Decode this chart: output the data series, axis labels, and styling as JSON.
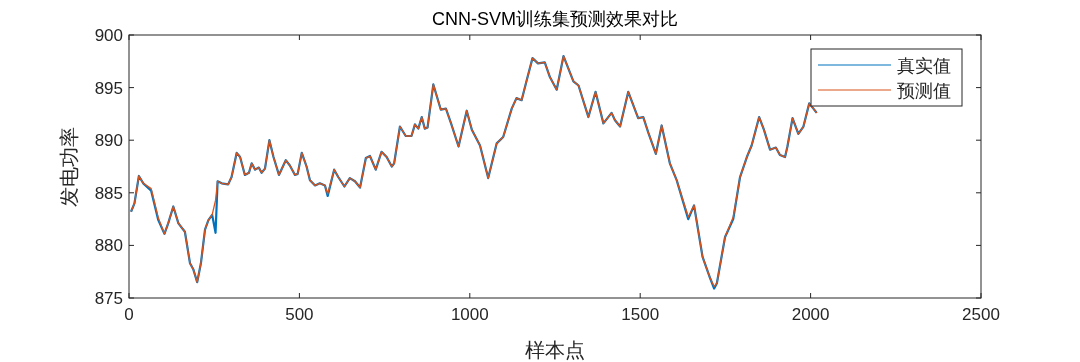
{
  "chart_data": {
    "type": "line",
    "title": "CNN-SVM训练集预测效果对比",
    "xlabel": "样本点",
    "ylabel": "发电功率",
    "xlim": [
      0,
      2500
    ],
    "xticks": [
      0,
      500,
      1000,
      1500,
      2000,
      2500
    ],
    "ylim": [
      875,
      900
    ],
    "yticks": [
      875,
      880,
      885,
      890,
      895,
      900
    ],
    "grid": false,
    "legend": "top right",
    "marker": "none",
    "line_style": "solid",
    "x": [
      6,
      16,
      29,
      42,
      65,
      86,
      104,
      115,
      130,
      145,
      164,
      179,
      189,
      200,
      211,
      223,
      233,
      244,
      254,
      260,
      272,
      291,
      301,
      316,
      326,
      340,
      352,
      360,
      370,
      381,
      389,
      399,
      412,
      424,
      440,
      460,
      472,
      487,
      495,
      507,
      521,
      531,
      546,
      560,
      575,
      583,
      602,
      614,
      632,
      648,
      663,
      678,
      695,
      707,
      724,
      741,
      756,
      771,
      778,
      795,
      812,
      829,
      839,
      849,
      859,
      868,
      876,
      893,
      915,
      930,
      945,
      967,
      991,
      1006,
      1030,
      1054,
      1079,
      1098,
      1123,
      1137,
      1152,
      1167,
      1184,
      1200,
      1220,
      1235,
      1255,
      1275,
      1304,
      1319,
      1348,
      1369,
      1392,
      1416,
      1426,
      1441,
      1465,
      1494,
      1509,
      1524,
      1546,
      1563,
      1587,
      1607,
      1641,
      1658,
      1683,
      1705,
      1717,
      1725,
      1749,
      1773,
      1793,
      1813,
      1827,
      1849,
      1863,
      1881,
      1898,
      1910,
      1925,
      1932,
      1947,
      1964,
      1979,
      1996,
      2018
    ],
    "series": [
      {
        "name": "真实值",
        "color": "#0072bd",
        "values": [
          883.2,
          884.0,
          886.6,
          885.9,
          885.2,
          882.4,
          881.1,
          882.1,
          883.7,
          882.1,
          881.3,
          878.3,
          877.7,
          876.5,
          878.3,
          881.5,
          882.4,
          882.9,
          881.2,
          886.1,
          885.9,
          885.8,
          886.5,
          888.8,
          888.4,
          886.7,
          886.9,
          887.8,
          887.2,
          887.4,
          886.9,
          887.3,
          890.0,
          888.4,
          886.7,
          888.1,
          887.6,
          886.7,
          886.8,
          888.8,
          887.5,
          886.2,
          885.7,
          885.9,
          885.7,
          884.7,
          887.2,
          886.5,
          885.6,
          886.4,
          886.1,
          885.5,
          888.3,
          888.5,
          887.2,
          888.9,
          888.4,
          887.5,
          887.8,
          891.3,
          890.4,
          890.4,
          891.5,
          891.1,
          892.2,
          891.1,
          891.2,
          895.3,
          892.9,
          893.0,
          891.6,
          889.4,
          892.8,
          891.0,
          889.5,
          886.4,
          889.7,
          890.3,
          893.0,
          894.0,
          893.8,
          895.7,
          897.8,
          897.3,
          897.4,
          896.0,
          894.8,
          898.0,
          895.6,
          895.2,
          892.2,
          894.6,
          891.6,
          892.6,
          891.9,
          891.3,
          894.6,
          892.1,
          892.2,
          890.7,
          888.7,
          891.4,
          887.8,
          886.2,
          882.5,
          883.8,
          878.9,
          876.9,
          875.9,
          876.4,
          880.8,
          882.5,
          886.5,
          888.4,
          889.5,
          892.2,
          891.0,
          889.1,
          889.3,
          888.6,
          888.4,
          889.4,
          892.1,
          890.6,
          891.3,
          893.5,
          892.6
        ]
      },
      {
        "name": "预测值",
        "color": "#d95319",
        "values": [
          883.2,
          884.0,
          886.6,
          885.9,
          885.4,
          882.6,
          881.1,
          882.1,
          883.7,
          882.1,
          881.3,
          878.3,
          877.7,
          876.5,
          878.3,
          881.5,
          882.4,
          882.9,
          884.3,
          886.1,
          885.9,
          885.8,
          886.5,
          888.8,
          888.4,
          886.7,
          886.9,
          887.8,
          887.2,
          887.4,
          886.9,
          887.3,
          890.0,
          888.4,
          886.7,
          888.1,
          887.6,
          886.7,
          886.8,
          888.8,
          887.5,
          886.2,
          885.7,
          885.9,
          885.7,
          884.9,
          887.2,
          886.5,
          885.6,
          886.4,
          886.1,
          885.5,
          888.3,
          888.5,
          887.2,
          888.9,
          888.4,
          887.5,
          887.8,
          891.3,
          890.4,
          890.4,
          891.5,
          891.1,
          892.2,
          891.1,
          891.2,
          895.3,
          892.9,
          893.0,
          891.6,
          889.4,
          892.8,
          891.0,
          889.5,
          886.4,
          889.7,
          890.3,
          893.0,
          894.0,
          893.8,
          895.7,
          897.8,
          897.3,
          897.4,
          896.0,
          894.8,
          898.0,
          895.6,
          895.2,
          892.2,
          894.6,
          891.6,
          892.6,
          891.9,
          891.3,
          894.6,
          892.1,
          892.2,
          890.7,
          888.7,
          891.4,
          887.8,
          886.2,
          882.7,
          883.8,
          878.9,
          876.9,
          876.1,
          876.4,
          880.8,
          882.7,
          886.5,
          888.4,
          889.5,
          892.2,
          891.0,
          889.1,
          889.3,
          888.6,
          888.4,
          889.4,
          892.1,
          890.6,
          891.3,
          893.5,
          892.6
        ]
      }
    ]
  }
}
